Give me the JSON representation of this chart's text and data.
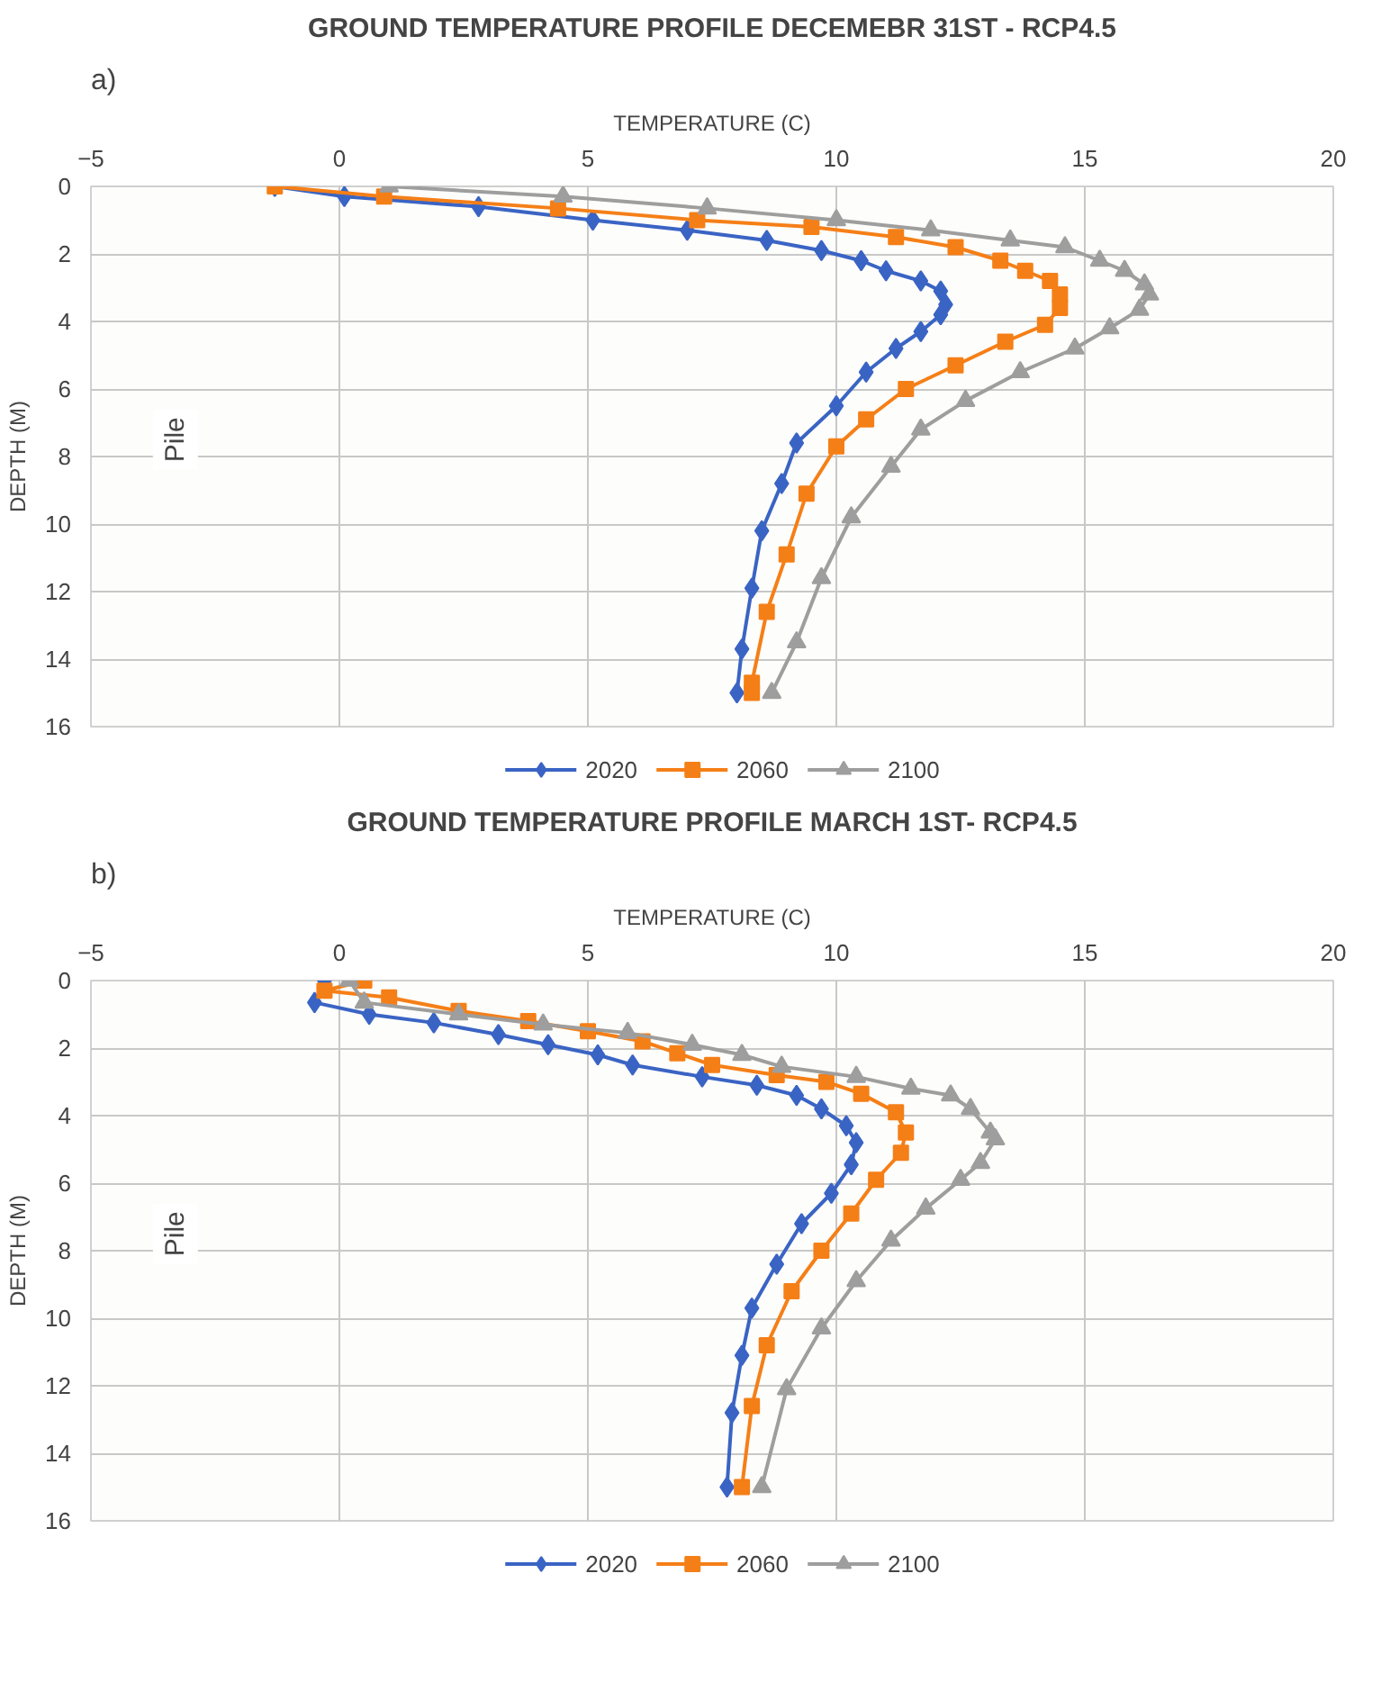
{
  "chart_data": [
    {
      "type": "line",
      "title": "GROUND TEMPERATURE PROFILE DECEMEBR 31ST - RCP4.5",
      "xlabel": "TEMPERATURE (C)",
      "ylabel": "DEPTH (M)",
      "xlim": [
        -5,
        20
      ],
      "xticks": [
        -5,
        0,
        5,
        10,
        15,
        20
      ],
      "ylim": [
        16,
        0
      ],
      "yticks": [
        0,
        2,
        4,
        6,
        8,
        10,
        12,
        14,
        16
      ],
      "grid": true,
      "legend": "bottom",
      "annotations": [
        "a)",
        {
          "text": "Pile",
          "x": -3.3,
          "y": 7.5
        }
      ],
      "series": [
        {
          "name": "2020",
          "color": "#3a64c4",
          "marker": "diamond",
          "x": [
            -1.3,
            0.1,
            2.8,
            5.1,
            7.0,
            8.6,
            9.7,
            10.5,
            11.0,
            11.7,
            12.1,
            12.2,
            12.1,
            11.7,
            11.2,
            10.6,
            10.0,
            9.2,
            8.9,
            8.5,
            8.3,
            8.1,
            8.0
          ],
          "values": [
            0,
            0.3,
            0.6,
            1.0,
            1.3,
            1.6,
            1.9,
            2.2,
            2.5,
            2.8,
            3.1,
            3.5,
            3.8,
            4.3,
            4.8,
            5.5,
            6.5,
            7.6,
            8.8,
            10.2,
            11.9,
            13.7,
            15
          ]
        },
        {
          "name": "2060",
          "color": "#f57f17",
          "marker": "square",
          "x": [
            -1.3,
            0.9,
            4.4,
            7.2,
            9.5,
            11.2,
            12.4,
            13.3,
            13.8,
            14.3,
            14.5,
            14.5,
            14.2,
            13.4,
            12.4,
            11.4,
            10.6,
            10.0,
            9.4,
            9.0,
            8.6,
            8.3,
            8.3
          ],
          "values": [
            0,
            0.3,
            0.65,
            1.0,
            1.2,
            1.5,
            1.8,
            2.2,
            2.5,
            2.8,
            3.2,
            3.6,
            4.1,
            4.6,
            5.3,
            6.0,
            6.9,
            7.7,
            9.1,
            10.9,
            12.6,
            14.7,
            15
          ]
        },
        {
          "name": "2100",
          "color": "#9e9e9e",
          "marker": "triangle",
          "x": [
            1.0,
            4.5,
            7.4,
            10.0,
            11.9,
            13.5,
            14.6,
            15.3,
            15.8,
            16.2,
            16.3,
            16.1,
            15.5,
            14.8,
            13.7,
            12.6,
            11.7,
            11.1,
            10.3,
            9.7,
            9.2,
            8.7
          ],
          "values": [
            0,
            0.3,
            0.65,
            1.0,
            1.3,
            1.6,
            1.8,
            2.2,
            2.5,
            2.9,
            3.2,
            3.65,
            4.2,
            4.8,
            5.5,
            6.35,
            7.2,
            8.3,
            9.8,
            11.6,
            13.5,
            15
          ]
        }
      ]
    },
    {
      "type": "line",
      "title": "GROUND TEMPERATURE PROFILE MARCH 1ST- RCP4.5",
      "xlabel": "TEMPERATURE (C)",
      "ylabel": "DEPTH (M)",
      "xlim": [
        -5,
        20
      ],
      "xticks": [
        -5,
        0,
        5,
        10,
        15,
        20
      ],
      "ylim": [
        16,
        0
      ],
      "yticks": [
        0,
        2,
        4,
        6,
        8,
        10,
        12,
        14,
        16
      ],
      "grid": true,
      "legend": "bottom",
      "annotations": [
        "b)",
        {
          "text": "Pile",
          "x": -3.3,
          "y": 7.5
        }
      ],
      "series": [
        {
          "name": "2020",
          "color": "#3a64c4",
          "marker": "diamond",
          "x": [
            -0.3,
            -0.5,
            0.6,
            1.9,
            3.2,
            4.2,
            5.2,
            5.9,
            7.3,
            8.4,
            9.2,
            9.7,
            10.2,
            10.4,
            10.3,
            9.9,
            9.3,
            8.8,
            8.3,
            8.1,
            7.9,
            7.8
          ],
          "values": [
            0,
            0.65,
            1.0,
            1.25,
            1.6,
            1.9,
            2.2,
            2.5,
            2.85,
            3.1,
            3.4,
            3.8,
            4.3,
            4.8,
            5.45,
            6.3,
            7.2,
            8.4,
            9.7,
            11.1,
            12.8,
            15
          ]
        },
        {
          "name": "2060",
          "color": "#f57f17",
          "marker": "square",
          "x": [
            0.5,
            -0.3,
            1.0,
            2.4,
            3.8,
            5.0,
            6.1,
            6.8,
            7.5,
            8.8,
            9.8,
            10.5,
            11.2,
            11.4,
            11.3,
            10.8,
            10.3,
            9.7,
            9.1,
            8.6,
            8.3,
            8.1
          ],
          "values": [
            0,
            0.3,
            0.5,
            0.9,
            1.2,
            1.5,
            1.8,
            2.15,
            2.5,
            2.8,
            3.0,
            3.35,
            3.9,
            4.5,
            5.1,
            5.9,
            6.9,
            8.0,
            9.2,
            10.8,
            12.6,
            15
          ]
        },
        {
          "name": "2100",
          "color": "#9e9e9e",
          "marker": "triangle",
          "x": [
            0.2,
            0.5,
            2.4,
            4.1,
            5.8,
            7.1,
            8.1,
            8.9,
            10.4,
            11.5,
            12.3,
            12.7,
            13.1,
            13.2,
            12.9,
            12.5,
            11.8,
            11.1,
            10.4,
            9.7,
            9.0,
            8.5
          ],
          "values": [
            0,
            0.65,
            1.0,
            1.3,
            1.55,
            1.9,
            2.2,
            2.55,
            2.85,
            3.2,
            3.4,
            3.8,
            4.5,
            4.7,
            5.4,
            5.9,
            6.75,
            7.7,
            8.9,
            10.3,
            12.1,
            15
          ]
        }
      ]
    }
  ]
}
